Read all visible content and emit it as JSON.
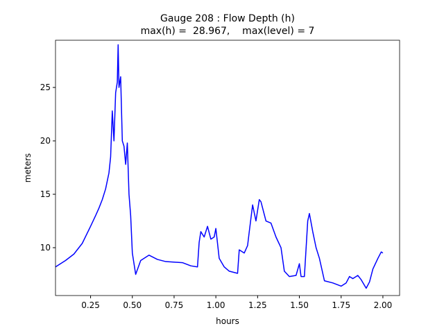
{
  "chart_data": {
    "type": "line",
    "title": "Gauge 208 : Flow Depth (h)",
    "subtitle": "max(h) =  28.967,    max(level) = 7",
    "xlabel": "hours",
    "ylabel": "meters",
    "xlim": [
      0.04,
      2.1
    ],
    "ylim": [
      5.52,
      29.42
    ],
    "xticks": [
      0.25,
      {
        "value": 0.5,
        "label": "0.50"
      },
      0.75,
      {
        "value": 1,
        "label": "1.00"
      },
      1.25,
      {
        "value": 1.5,
        "label": "1.50"
      },
      1.75,
      {
        "value": 2,
        "label": "2.00"
      }
    ],
    "yticks": [
      10,
      15,
      20,
      25
    ],
    "grid": false,
    "series": [
      {
        "name": "h",
        "color": "#0000ff",
        "x": [
          0.04,
          0.1,
          0.15,
          0.2,
          0.25,
          0.28,
          0.3,
          0.32,
          0.34,
          0.36,
          0.37,
          0.38,
          0.39,
          0.4,
          0.41,
          0.415,
          0.42,
          0.43,
          0.44,
          0.45,
          0.46,
          0.47,
          0.48,
          0.49,
          0.5,
          0.52,
          0.55,
          0.6,
          0.65,
          0.7,
          0.8,
          0.85,
          0.89,
          0.9,
          0.91,
          0.93,
          0.95,
          0.97,
          0.99,
          1.0,
          1.02,
          1.05,
          1.08,
          1.13,
          1.14,
          1.17,
          1.19,
          1.2,
          1.22,
          1.24,
          1.26,
          1.27,
          1.3,
          1.33,
          1.36,
          1.39,
          1.41,
          1.44,
          1.48,
          1.5,
          1.51,
          1.53,
          1.55,
          1.56,
          1.58,
          1.6,
          1.62,
          1.65,
          1.7,
          1.75,
          1.78,
          1.8,
          1.82,
          1.85,
          1.87,
          1.9,
          1.92,
          1.94,
          1.97,
          1.99,
          2.0
        ],
        "values": [
          8.2,
          8.8,
          9.4,
          10.4,
          12.0,
          13.0,
          13.7,
          14.5,
          15.5,
          17.0,
          18.5,
          22.8,
          20.0,
          24.5,
          25.5,
          29.0,
          25.0,
          26.0,
          20.0,
          19.5,
          17.8,
          19.8,
          15.0,
          13.0,
          9.5,
          7.5,
          8.8,
          9.3,
          8.9,
          8.7,
          8.6,
          8.3,
          8.2,
          10.5,
          11.5,
          11.0,
          12.0,
          10.8,
          11.0,
          11.8,
          9.0,
          8.2,
          7.8,
          7.6,
          9.8,
          9.5,
          10.2,
          11.5,
          14.0,
          12.5,
          14.5,
          14.3,
          12.5,
          12.3,
          11.0,
          10.0,
          7.8,
          7.3,
          7.4,
          8.5,
          7.3,
          7.3,
          12.5,
          13.2,
          11.5,
          10.0,
          9.0,
          6.9,
          6.7,
          6.4,
          6.7,
          7.3,
          7.1,
          7.4,
          7.0,
          6.2,
          6.8,
          8.0,
          9.0,
          9.6,
          9.5
        ]
      }
    ]
  }
}
